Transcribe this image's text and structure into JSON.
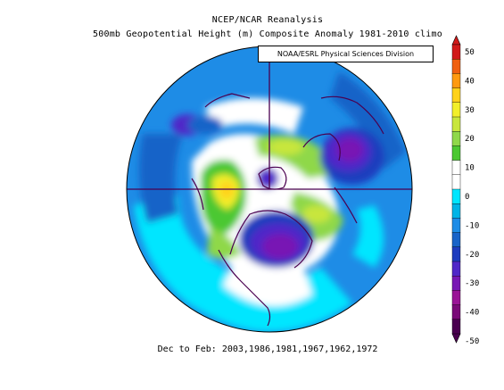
{
  "title_line1": "NCEP/NCAR Reanalysis",
  "title_line2": "500mb Geopotential Height (m) Composite Anomaly 1981-2010 climo",
  "credit": "NOAA/ESRL Physical Sciences Division",
  "footer": "Dec to Feb: 2003,1986,1981,1967,1962,1972",
  "colorbar": {
    "labels": [
      "50",
      "40",
      "30",
      "20",
      "10",
      "0",
      "-10",
      "-20",
      "-30",
      "-40",
      "-50"
    ],
    "colors": [
      "#d11a1a",
      "#f06010",
      "#ff9a10",
      "#ffd21a",
      "#f2ef2a",
      "#c8e63c",
      "#8fd84a",
      "#4cc832",
      "#ffffff",
      "#ffffff",
      "#00e6ff",
      "#00b4e6",
      "#1e8ce6",
      "#1964c8",
      "#1e3cbe",
      "#5028c8",
      "#7818b4",
      "#9a1496",
      "#7a0a78",
      "#4a0050"
    ]
  }
}
